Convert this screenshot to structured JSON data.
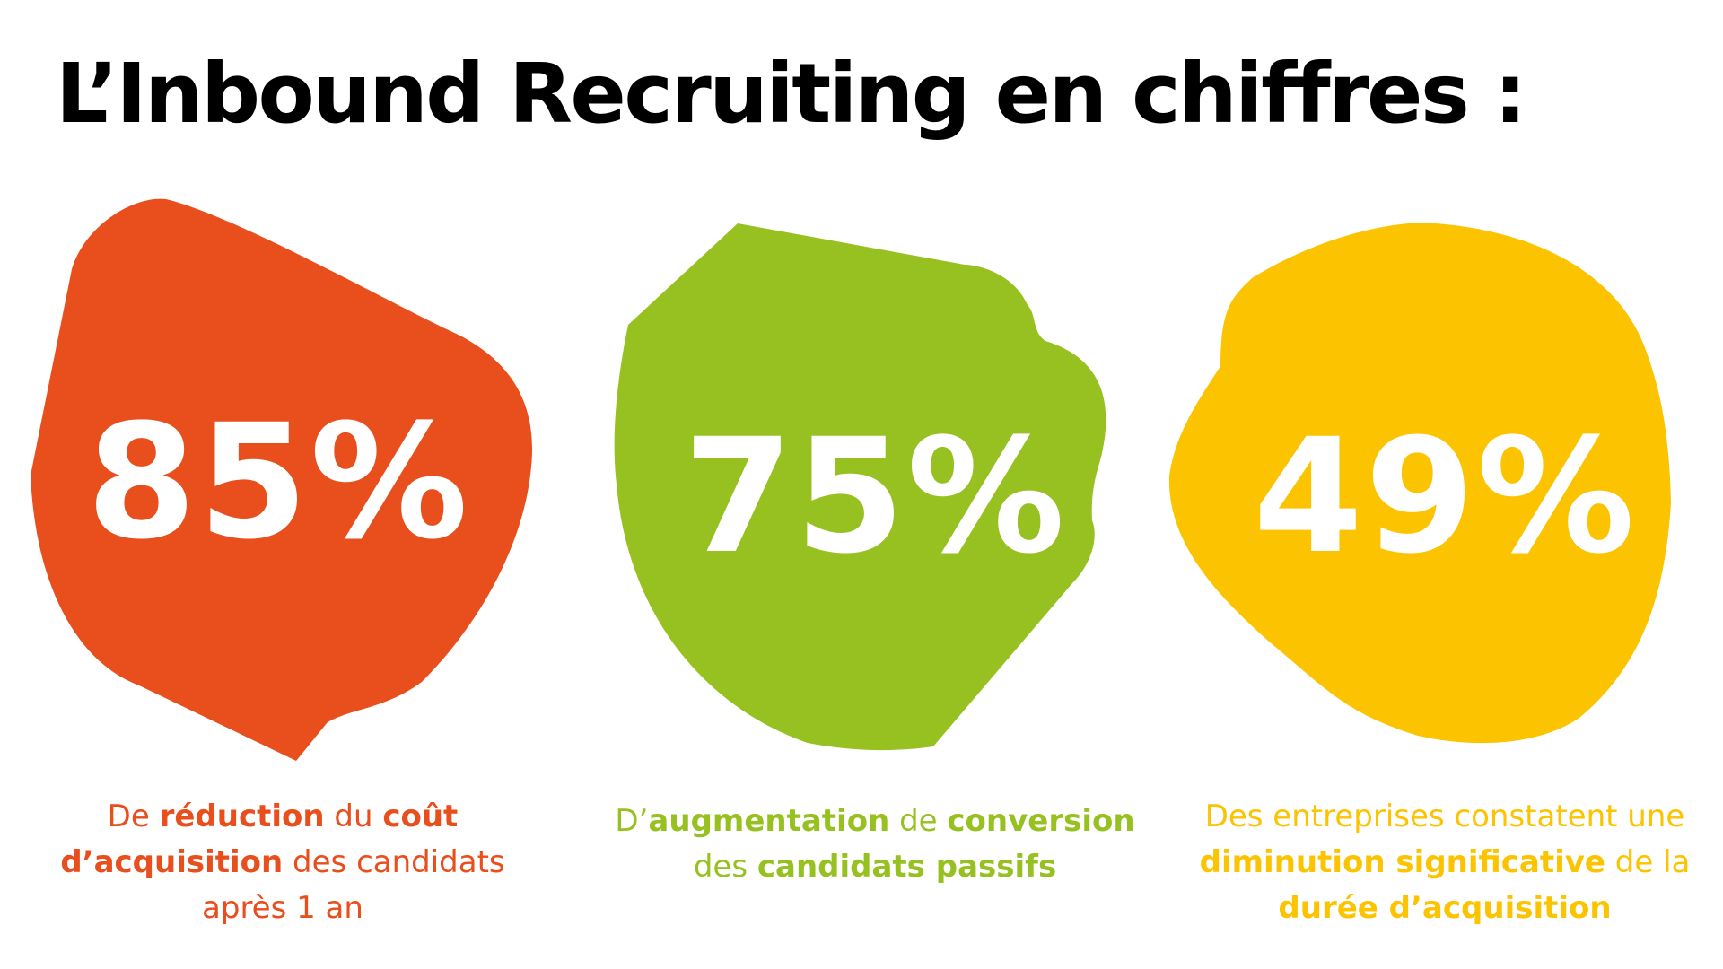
{
  "title": "L’Inbound Recruiting en chiffres :",
  "colors": {
    "orange": "#E94E1D",
    "green": "#97C121",
    "yellow": "#FCC300"
  },
  "stats": [
    {
      "value": "85%",
      "caption": {
        "p1": "De ",
        "b1": "réduction",
        "p2": " du ",
        "b2": "coût d’acquisition",
        "p3": " des candidats après 1 an"
      }
    },
    {
      "value": "75%",
      "caption": {
        "p1": "D’",
        "b1": "augmentation",
        "p2": " de ",
        "b2": "conversion",
        "p3": " des ",
        "b3": "candidats passifs"
      }
    },
    {
      "value": "49%",
      "caption": {
        "p1": "Des entreprises constatent une ",
        "b1": "diminution significative",
        "p2": " de la ",
        "b2": "durée d’acquisition"
      }
    }
  ]
}
